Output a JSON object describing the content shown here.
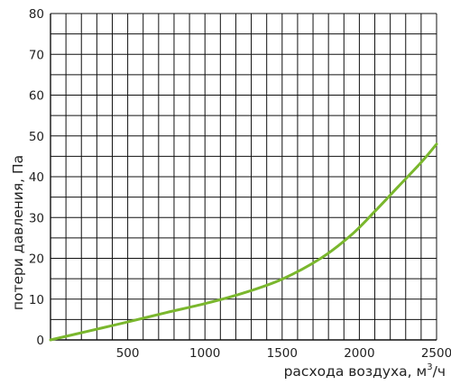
{
  "chart_data": {
    "type": "line",
    "xlabel": "расхода воздуха, м",
    "xlabel_sup": "3",
    "xlabel_end": "/ч",
    "ylabel": "потери давления, Па",
    "xlim": [
      0,
      2500
    ],
    "ylim": [
      0,
      80
    ],
    "xticks": [
      500,
      1000,
      1500,
      2000,
      2500
    ],
    "yticks": [
      0,
      10,
      20,
      30,
      40,
      50,
      60,
      70,
      80
    ],
    "x_grid_step": 100,
    "y_grid_step": 5,
    "grid": true,
    "series": [
      {
        "color": "#7ab72d",
        "x": [
          0,
          250,
          500,
          750,
          1000,
          1250,
          1500,
          1750,
          1950,
          2100,
          2250,
          2400,
          2500
        ],
        "y": [
          0,
          2.2,
          4.4,
          6.7,
          8.9,
          11.5,
          14.9,
          20.0,
          25.8,
          31.5,
          37.5,
          43.5,
          48.0
        ]
      }
    ]
  }
}
